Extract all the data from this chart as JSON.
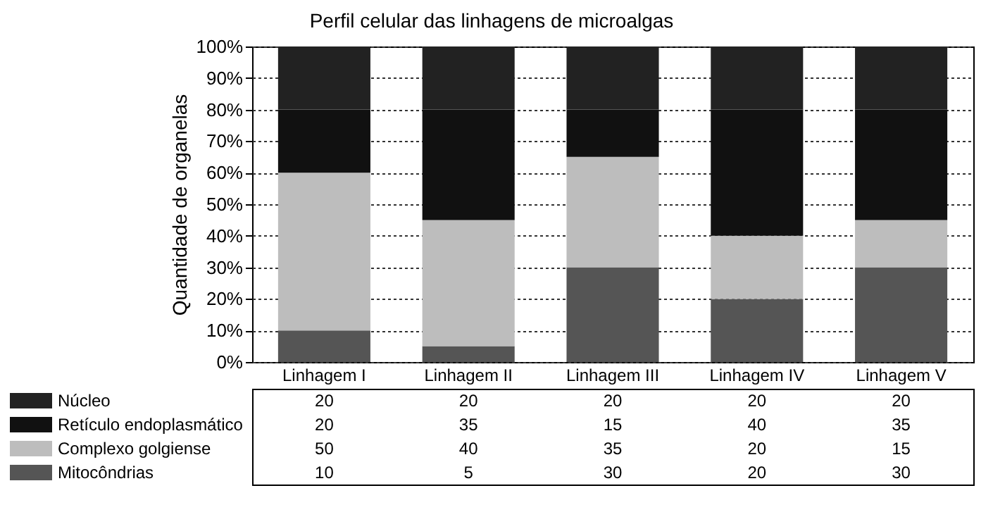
{
  "chart_data": {
    "type": "bar",
    "title": "Perfil celular das linhagens de microalgas",
    "ylabel": "Quantidade de organelas",
    "categories": [
      "Linhagem I",
      "Linhagem II",
      "Linhagem III",
      "Linhagem IV",
      "Linhagem V"
    ],
    "series": [
      {
        "name": "Mitocôndrias",
        "color": "#555555",
        "values": [
          10,
          5,
          30,
          20,
          30
        ]
      },
      {
        "name": "Complexo golgiense",
        "color": "#bdbdbd",
        "values": [
          50,
          40,
          35,
          20,
          15
        ]
      },
      {
        "name": "Retículo endoplasmático",
        "color": "#111111",
        "values": [
          20,
          35,
          15,
          40,
          35
        ]
      },
      {
        "name": "Núcleo",
        "color": "#222222",
        "values": [
          20,
          20,
          20,
          20,
          20
        ]
      }
    ],
    "stacked": true,
    "ylim": [
      0,
      100
    ],
    "yticks": [
      {
        "value": 0,
        "label": "0%"
      },
      {
        "value": 10,
        "label": "10%"
      },
      {
        "value": 20,
        "label": "20%"
      },
      {
        "value": 30,
        "label": "30%"
      },
      {
        "value": 40,
        "label": "40%"
      },
      {
        "value": 50,
        "label": "50%"
      },
      {
        "value": 60,
        "label": "60%"
      },
      {
        "value": 70,
        "label": "70%"
      },
      {
        "value": 80,
        "label": "80%"
      },
      {
        "value": 90,
        "label": "90%"
      },
      {
        "value": 100,
        "label": "100%"
      }
    ],
    "grid": "y",
    "legend": "bottom left",
    "data_labels": true
  }
}
